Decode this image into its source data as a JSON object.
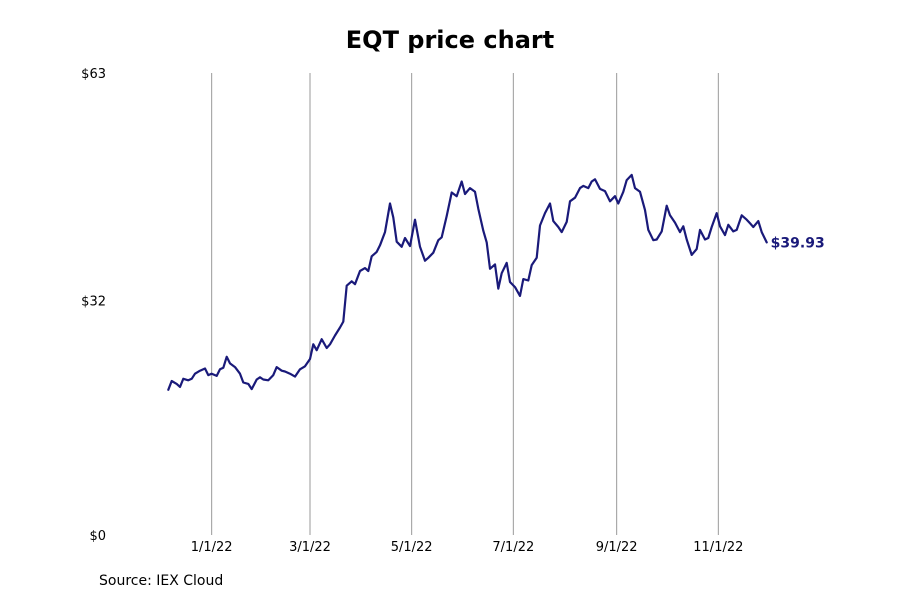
{
  "chart_data": {
    "type": "line",
    "title": "EQT price chart",
    "xlabel": "",
    "ylabel": "",
    "source": "Source: IEX Cloud",
    "xlim": [
      "2021-11-19",
      "2022-12-08"
    ],
    "ylim": [
      0,
      63
    ],
    "y_ticks": [
      0,
      32,
      63
    ],
    "y_tick_labels": [
      "$0",
      "$32",
      "$63"
    ],
    "x_ticks": [
      "2022-01-01",
      "2022-03-01",
      "2022-05-01",
      "2022-07-01",
      "2022-09-01",
      "2022-11-01"
    ],
    "x_tick_labels": [
      "1/1/22",
      "3/1/22",
      "5/1/22",
      "7/1/22",
      "9/1/22",
      "11/1/22"
    ],
    "grid": "vertical",
    "line_color": "#1a1a7a",
    "end_label": "$39.93",
    "series": [
      {
        "name": "",
        "points": [
          [
            "2021-12-06",
            19.8
          ],
          [
            "2021-12-08",
            21.0
          ],
          [
            "2021-12-11",
            20.6
          ],
          [
            "2021-12-13",
            20.2
          ],
          [
            "2021-12-15",
            21.3
          ],
          [
            "2021-12-18",
            21.1
          ],
          [
            "2021-12-20",
            21.3
          ],
          [
            "2021-12-22",
            22.0
          ],
          [
            "2021-12-25",
            22.4
          ],
          [
            "2021-12-28",
            22.7
          ],
          [
            "2021-12-30",
            21.8
          ],
          [
            "2022-01-01",
            22.0
          ],
          [
            "2022-01-04",
            21.7
          ],
          [
            "2022-01-06",
            22.6
          ],
          [
            "2022-01-08",
            22.8
          ],
          [
            "2022-01-10",
            24.3
          ],
          [
            "2022-01-12",
            23.4
          ],
          [
            "2022-01-15",
            22.9
          ],
          [
            "2022-01-18",
            22.0
          ],
          [
            "2022-01-20",
            20.8
          ],
          [
            "2022-01-23",
            20.6
          ],
          [
            "2022-01-25",
            19.9
          ],
          [
            "2022-01-28",
            21.2
          ],
          [
            "2022-01-30",
            21.5
          ],
          [
            "2022-02-01",
            21.2
          ],
          [
            "2022-02-04",
            21.1
          ],
          [
            "2022-02-07",
            21.8
          ],
          [
            "2022-02-09",
            22.9
          ],
          [
            "2022-02-12",
            22.4
          ],
          [
            "2022-02-14",
            22.3
          ],
          [
            "2022-02-17",
            22.0
          ],
          [
            "2022-02-20",
            21.6
          ],
          [
            "2022-02-23",
            22.6
          ],
          [
            "2022-02-26",
            23.0
          ],
          [
            "2022-03-01",
            24.0
          ],
          [
            "2022-03-03",
            26.0
          ],
          [
            "2022-03-05",
            25.2
          ],
          [
            "2022-03-08",
            26.7
          ],
          [
            "2022-03-11",
            25.5
          ],
          [
            "2022-03-13",
            26.0
          ],
          [
            "2022-03-16",
            27.2
          ],
          [
            "2022-03-19",
            28.3
          ],
          [
            "2022-03-21",
            29.1
          ],
          [
            "2022-03-23",
            34.0
          ],
          [
            "2022-03-26",
            34.6
          ],
          [
            "2022-03-28",
            34.2
          ],
          [
            "2022-03-31",
            36.0
          ],
          [
            "2022-04-03",
            36.4
          ],
          [
            "2022-04-05",
            36.0
          ],
          [
            "2022-04-07",
            38.0
          ],
          [
            "2022-04-10",
            38.6
          ],
          [
            "2022-04-12",
            39.5
          ],
          [
            "2022-04-15",
            41.3
          ],
          [
            "2022-04-18",
            45.2
          ],
          [
            "2022-04-20",
            43.3
          ],
          [
            "2022-04-22",
            40.0
          ],
          [
            "2022-04-25",
            39.3
          ],
          [
            "2022-04-27",
            40.5
          ],
          [
            "2022-04-30",
            39.4
          ],
          [
            "2022-05-03",
            43.0
          ],
          [
            "2022-05-06",
            39.3
          ],
          [
            "2022-05-09",
            37.4
          ],
          [
            "2022-05-11",
            37.8
          ],
          [
            "2022-05-14",
            38.5
          ],
          [
            "2022-05-17",
            40.2
          ],
          [
            "2022-05-19",
            40.6
          ],
          [
            "2022-05-22",
            43.5
          ],
          [
            "2022-05-25",
            46.7
          ],
          [
            "2022-05-28",
            46.2
          ],
          [
            "2022-05-31",
            48.2
          ],
          [
            "2022-06-02",
            46.5
          ],
          [
            "2022-06-05",
            47.3
          ],
          [
            "2022-06-08",
            46.8
          ],
          [
            "2022-06-10",
            44.5
          ],
          [
            "2022-06-13",
            41.5
          ],
          [
            "2022-06-15",
            39.9
          ],
          [
            "2022-06-17",
            36.3
          ],
          [
            "2022-06-20",
            36.9
          ],
          [
            "2022-06-22",
            33.6
          ],
          [
            "2022-06-24",
            35.7
          ],
          [
            "2022-06-27",
            37.1
          ],
          [
            "2022-06-29",
            34.5
          ],
          [
            "2022-07-02",
            33.8
          ],
          [
            "2022-07-05",
            32.6
          ],
          [
            "2022-07-07",
            34.9
          ],
          [
            "2022-07-10",
            34.7
          ],
          [
            "2022-07-12",
            36.8
          ],
          [
            "2022-07-15",
            37.8
          ],
          [
            "2022-07-17",
            42.2
          ],
          [
            "2022-07-20",
            43.9
          ],
          [
            "2022-07-23",
            45.2
          ],
          [
            "2022-07-25",
            42.8
          ],
          [
            "2022-07-28",
            42.0
          ],
          [
            "2022-07-30",
            41.3
          ],
          [
            "2022-08-02",
            42.7
          ],
          [
            "2022-08-04",
            45.5
          ],
          [
            "2022-08-07",
            46.0
          ],
          [
            "2022-08-10",
            47.3
          ],
          [
            "2022-08-12",
            47.6
          ],
          [
            "2022-08-15",
            47.3
          ],
          [
            "2022-08-17",
            48.2
          ],
          [
            "2022-08-19",
            48.5
          ],
          [
            "2022-08-22",
            47.2
          ],
          [
            "2022-08-25",
            46.9
          ],
          [
            "2022-08-28",
            45.5
          ],
          [
            "2022-08-31",
            46.2
          ],
          [
            "2022-09-02",
            45.2
          ],
          [
            "2022-09-05",
            46.8
          ],
          [
            "2022-09-07",
            48.4
          ],
          [
            "2022-09-10",
            49.1
          ],
          [
            "2022-09-12",
            47.3
          ],
          [
            "2022-09-15",
            46.8
          ],
          [
            "2022-09-18",
            44.3
          ],
          [
            "2022-09-20",
            41.6
          ],
          [
            "2022-09-23",
            40.2
          ],
          [
            "2022-09-25",
            40.3
          ],
          [
            "2022-09-28",
            41.4
          ],
          [
            "2022-10-01",
            44.9
          ],
          [
            "2022-10-03",
            43.6
          ],
          [
            "2022-10-06",
            42.6
          ],
          [
            "2022-10-09",
            41.3
          ],
          [
            "2022-10-11",
            42.1
          ],
          [
            "2022-10-13",
            40.3
          ],
          [
            "2022-10-16",
            38.2
          ],
          [
            "2022-10-19",
            39.0
          ],
          [
            "2022-10-21",
            41.6
          ],
          [
            "2022-10-24",
            40.3
          ],
          [
            "2022-10-26",
            40.5
          ],
          [
            "2022-10-28",
            42.0
          ],
          [
            "2022-10-31",
            43.9
          ],
          [
            "2022-11-02",
            42.1
          ],
          [
            "2022-11-05",
            40.9
          ],
          [
            "2022-11-07",
            42.3
          ],
          [
            "2022-11-10",
            41.4
          ],
          [
            "2022-11-12",
            41.6
          ],
          [
            "2022-11-15",
            43.6
          ],
          [
            "2022-11-18",
            43.0
          ],
          [
            "2022-11-20",
            42.5
          ],
          [
            "2022-11-22",
            42.0
          ],
          [
            "2022-11-25",
            42.8
          ],
          [
            "2022-11-27",
            41.3
          ],
          [
            "2022-11-30",
            39.9
          ]
        ]
      }
    ]
  }
}
